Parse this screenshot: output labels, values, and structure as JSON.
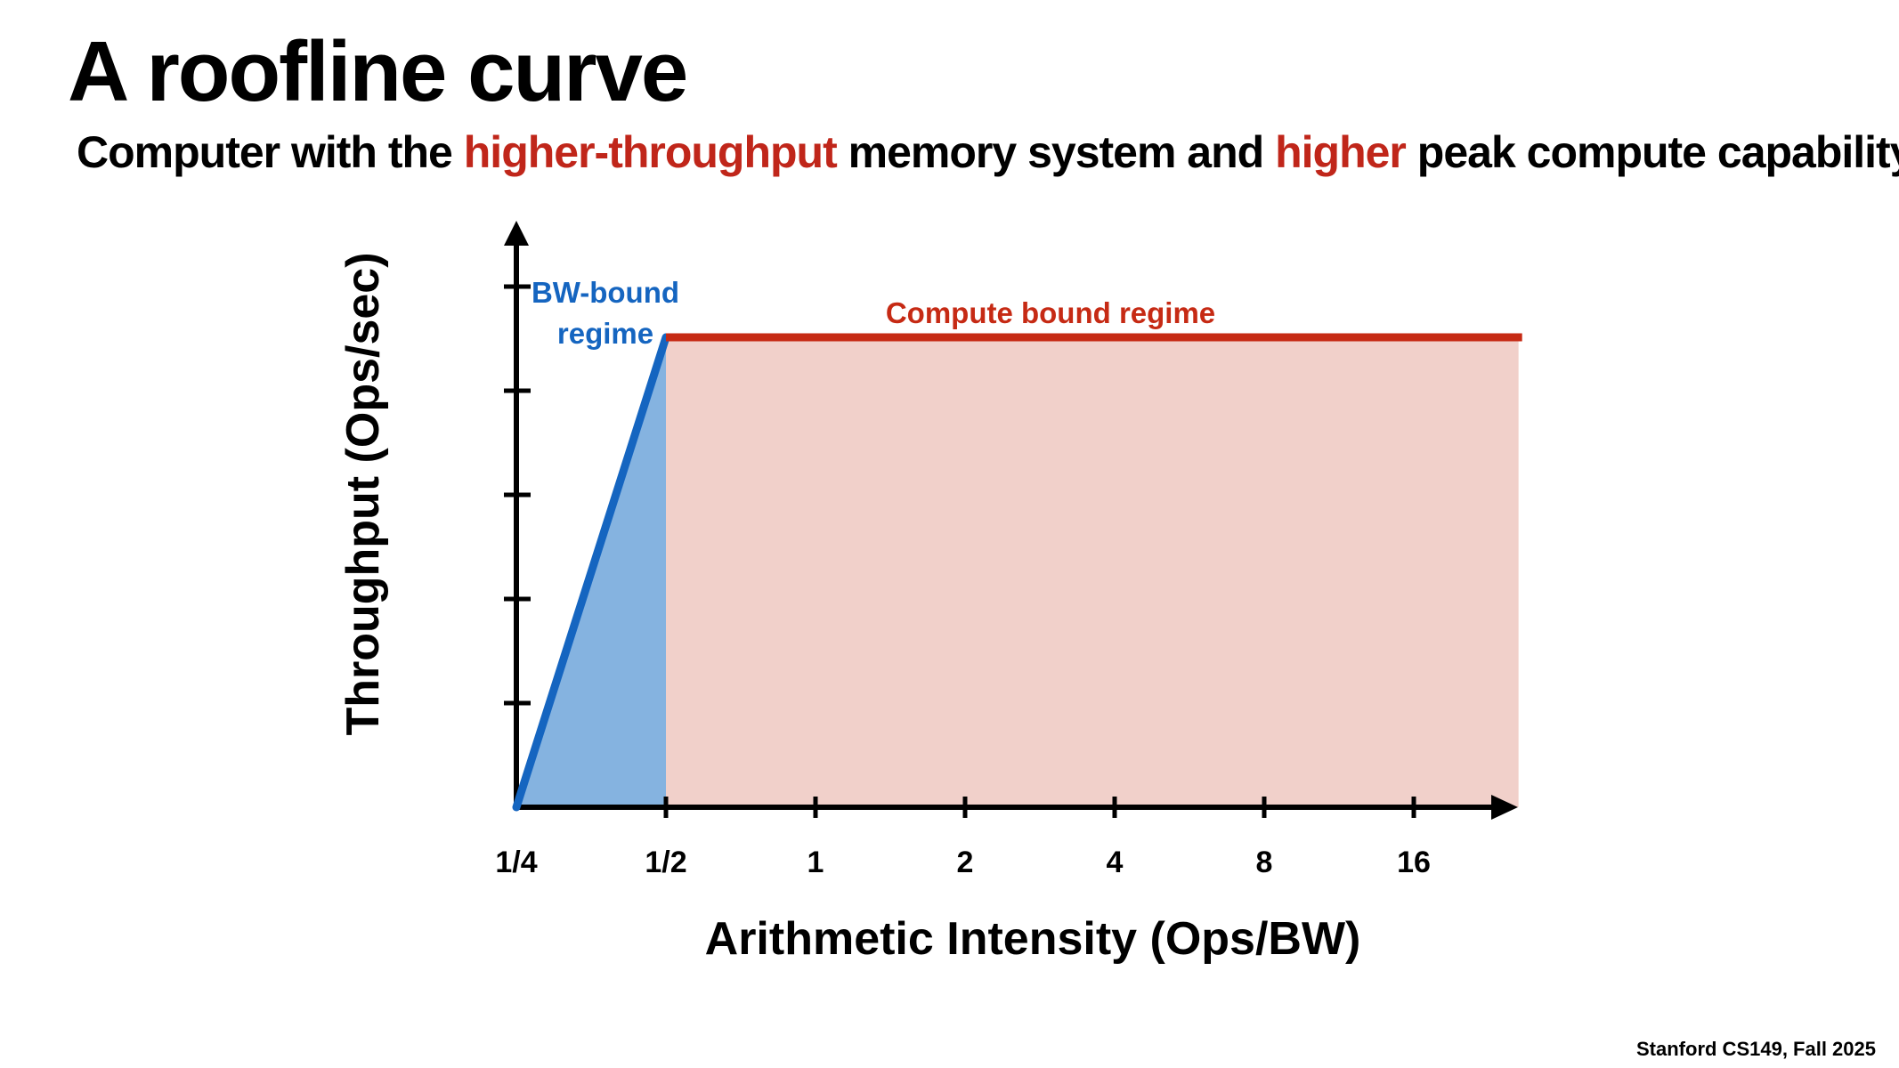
{
  "slide": {
    "title": "A roofline curve",
    "subtitle_parts": {
      "p1": "Computer with the ",
      "h1": "higher-throughput",
      "p2": " memory system and ",
      "h2": "higher",
      "p3": " peak compute capability"
    },
    "footer": "Stanford CS149, Fall 2025"
  },
  "colors": {
    "bw": "#1565c0",
    "bw_fill": "#85b3e0",
    "compute": "#c62a14",
    "compute_fill": "#f1d0ca",
    "axis": "#000000"
  },
  "chart_data": {
    "type": "area",
    "xlabel": "Arithmetic Intensity (Ops/BW)",
    "ylabel": "Throughput (Ops/sec)",
    "x_scale": "log2",
    "x_ticks": [
      "1/4",
      "1/2",
      "1",
      "2",
      "4",
      "8",
      "16"
    ],
    "x_tick_values": [
      0.25,
      0.5,
      1,
      2,
      4,
      8,
      16
    ],
    "y_ticks_count": 5,
    "y_tick_labels_shown": false,
    "series": [
      {
        "name": "BW-bound regime",
        "points": [
          [
            0.25,
            0
          ],
          [
            0.5,
            0.88
          ]
        ]
      },
      {
        "name": "Compute bound regime",
        "points": [
          [
            0.5,
            0.88
          ],
          [
            26,
            0.88
          ]
        ]
      }
    ],
    "annotations": {
      "bw_label_line1": "BW-bound",
      "bw_label_line2": "regime",
      "compute_label": "Compute bound regime"
    }
  }
}
